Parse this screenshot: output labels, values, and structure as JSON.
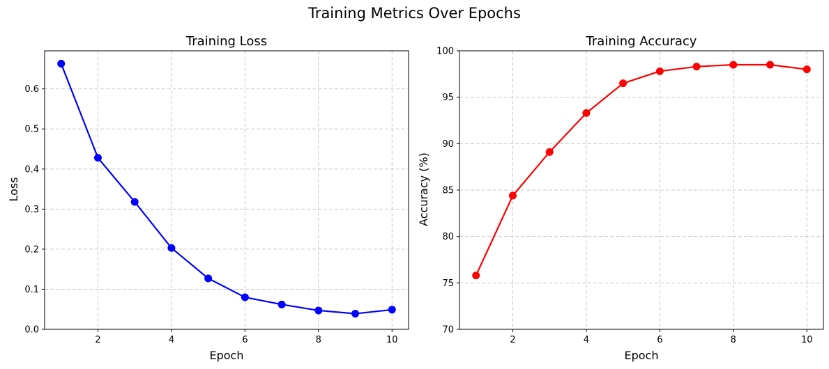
{
  "figure": {
    "suptitle": "Training Metrics Over Epochs"
  },
  "chart_data": [
    {
      "type": "line",
      "title": "Training Loss",
      "xlabel": "Epoch",
      "ylabel": "Loss",
      "x": [
        1,
        2,
        3,
        4,
        5,
        6,
        7,
        8,
        9,
        10
      ],
      "series": [
        {
          "values": [
            0.663,
            0.428,
            0.318,
            0.203,
            0.127,
            0.08,
            0.062,
            0.047,
            0.039,
            0.049
          ],
          "color": "#0000ff"
        }
      ],
      "xlim": [
        0.55,
        10.45
      ],
      "ylim": [
        0.0,
        0.695
      ],
      "xticks": [
        2,
        4,
        6,
        8,
        10
      ],
      "yticks": [
        0.0,
        0.1,
        0.2,
        0.3,
        0.4,
        0.5,
        0.6
      ],
      "ytick_labels": [
        "0.0",
        "0.1",
        "0.2",
        "0.3",
        "0.4",
        "0.5",
        "0.6"
      ],
      "grid": true
    },
    {
      "type": "line",
      "title": "Training Accuracy",
      "xlabel": "Epoch",
      "ylabel": "Accuracy (%)",
      "x": [
        1,
        2,
        3,
        4,
        5,
        6,
        7,
        8,
        9,
        10
      ],
      "series": [
        {
          "values": [
            75.8,
            84.4,
            89.1,
            93.3,
            96.5,
            97.8,
            98.3,
            98.5,
            98.5,
            98.0
          ],
          "color": "#ff0000"
        }
      ],
      "xlim": [
        0.55,
        10.45
      ],
      "ylim": [
        70,
        100
      ],
      "xticks": [
        2,
        4,
        6,
        8,
        10
      ],
      "yticks": [
        70,
        75,
        80,
        85,
        90,
        95,
        100
      ],
      "ytick_labels": [
        "70",
        "75",
        "80",
        "85",
        "90",
        "95",
        "100"
      ],
      "grid": true
    }
  ]
}
